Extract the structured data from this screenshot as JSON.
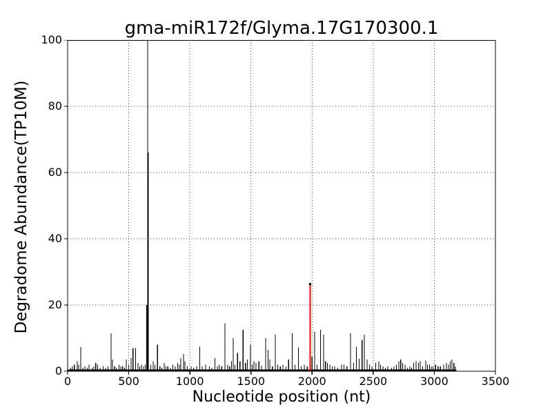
{
  "chart_data": {
    "type": "bar",
    "style": "degradome-vlines-t-plot",
    "title": "gma-miR172f/Glyma.17G170300.1",
    "xlabel": "Nucleotide position (nt)",
    "ylabel": "Degradome Abundance(TP10M)",
    "xlim": [
      0,
      3500
    ],
    "ylim": [
      0,
      100
    ],
    "x_ticks": [
      0,
      500,
      1000,
      1500,
      2000,
      2500,
      3000,
      3500
    ],
    "y_ticks": [
      0,
      20,
      40,
      60,
      80,
      100
    ],
    "grid": {
      "visible": true,
      "style": "dotted"
    },
    "colors": {
      "background": "#ffffff",
      "axis": "#000000",
      "grid": "#3a3a3a",
      "black_spikes": "#000000",
      "red_spike": "#ff0000"
    },
    "transcript_end_nt": 3180,
    "baseline_noise_level": 0.5,
    "black_spikes": [
      [
        25,
        1
      ],
      [
        40,
        1.5
      ],
      [
        55,
        2
      ],
      [
        80,
        3
      ],
      [
        90,
        2
      ],
      [
        107,
        7.3
      ],
      [
        125,
        1
      ],
      [
        140,
        1.5
      ],
      [
        160,
        1
      ],
      [
        175,
        2
      ],
      [
        200,
        1
      ],
      [
        215,
        1.5
      ],
      [
        230,
        2.5
      ],
      [
        245,
        2
      ],
      [
        265,
        1
      ],
      [
        290,
        1.5
      ],
      [
        310,
        1
      ],
      [
        330,
        1.5
      ],
      [
        355,
        11.5
      ],
      [
        368,
        3.5
      ],
      [
        385,
        1.5
      ],
      [
        400,
        1
      ],
      [
        420,
        2
      ],
      [
        435,
        1.5
      ],
      [
        450,
        1.5
      ],
      [
        465,
        1
      ],
      [
        480,
        3.5
      ],
      [
        500,
        2
      ],
      [
        520,
        4
      ],
      [
        535,
        7
      ],
      [
        557,
        7
      ],
      [
        575,
        2.5
      ],
      [
        590,
        1.5
      ],
      [
        605,
        2
      ],
      [
        620,
        1.5
      ],
      [
        635,
        2
      ],
      [
        648,
        20
      ],
      [
        655,
        100
      ],
      [
        661,
        66
      ],
      [
        680,
        2
      ],
      [
        700,
        3
      ],
      [
        715,
        2
      ],
      [
        735,
        8
      ],
      [
        755,
        1.5
      ],
      [
        770,
        1
      ],
      [
        790,
        2.5
      ],
      [
        805,
        1.5
      ],
      [
        820,
        1.5
      ],
      [
        840,
        1
      ],
      [
        860,
        2
      ],
      [
        880,
        1.5
      ],
      [
        900,
        2.5
      ],
      [
        915,
        2
      ],
      [
        925,
        4
      ],
      [
        948,
        5.2
      ],
      [
        960,
        3
      ],
      [
        980,
        1.5
      ],
      [
        1010,
        1.5
      ],
      [
        1030,
        1
      ],
      [
        1055,
        1.5
      ],
      [
        1080,
        7.4
      ],
      [
        1100,
        1.5
      ],
      [
        1130,
        2
      ],
      [
        1160,
        1.5
      ],
      [
        1180,
        1
      ],
      [
        1205,
        4
      ],
      [
        1225,
        1.5
      ],
      [
        1240,
        2
      ],
      [
        1260,
        1.5
      ],
      [
        1287,
        14.5
      ],
      [
        1310,
        2
      ],
      [
        1325,
        1.5
      ],
      [
        1340,
        3
      ],
      [
        1355,
        10
      ],
      [
        1370,
        2
      ],
      [
        1390,
        5.5
      ],
      [
        1410,
        3
      ],
      [
        1435,
        12.5
      ],
      [
        1455,
        2.5
      ],
      [
        1470,
        3.5
      ],
      [
        1495,
        8
      ],
      [
        1510,
        2
      ],
      [
        1525,
        3
      ],
      [
        1540,
        2.5
      ],
      [
        1565,
        3
      ],
      [
        1586,
        1.7
      ],
      [
        1620,
        10
      ],
      [
        1639,
        6.5
      ],
      [
        1655,
        3.5
      ],
      [
        1675,
        1.5
      ],
      [
        1699,
        11
      ],
      [
        1720,
        2
      ],
      [
        1740,
        1.5
      ],
      [
        1761,
        2
      ],
      [
        1786,
        1.5
      ],
      [
        1808,
        3.5
      ],
      [
        1837,
        11.5
      ],
      [
        1860,
        2
      ],
      [
        1889,
        7.2
      ],
      [
        1910,
        1.5
      ],
      [
        1937,
        2
      ],
      [
        1960,
        1.5
      ],
      [
        2000,
        4.4
      ],
      [
        2021,
        12
      ],
      [
        2040,
        2
      ],
      [
        2070,
        12.5
      ],
      [
        2094,
        11
      ],
      [
        2110,
        3
      ],
      [
        2126,
        2.5
      ],
      [
        2145,
        2
      ],
      [
        2165,
        1.5
      ],
      [
        2185,
        1.5
      ],
      [
        2210,
        1
      ],
      [
        2240,
        2
      ],
      [
        2260,
        2
      ],
      [
        2285,
        1.5
      ],
      [
        2315,
        11.5
      ],
      [
        2340,
        2.5
      ],
      [
        2362,
        7.4
      ],
      [
        2386,
        3.8
      ],
      [
        2409,
        9.5
      ],
      [
        2428,
        11
      ],
      [
        2450,
        3.5
      ],
      [
        2470,
        2
      ],
      [
        2490,
        1.5
      ],
      [
        2520,
        2.5
      ],
      [
        2545,
        3
      ],
      [
        2560,
        2
      ],
      [
        2580,
        1.5
      ],
      [
        2600,
        1
      ],
      [
        2620,
        1.5
      ],
      [
        2650,
        1
      ],
      [
        2670,
        1.5
      ],
      [
        2690,
        2
      ],
      [
        2710,
        3
      ],
      [
        2725,
        3.5
      ],
      [
        2740,
        2.5
      ],
      [
        2760,
        2
      ],
      [
        2780,
        1
      ],
      [
        2800,
        1.5
      ],
      [
        2815,
        1
      ],
      [
        2830,
        2.5
      ],
      [
        2850,
        3
      ],
      [
        2870,
        2.5
      ],
      [
        2885,
        3
      ],
      [
        2905,
        1.5
      ],
      [
        2930,
        3.2
      ],
      [
        2945,
        2
      ],
      [
        2960,
        2
      ],
      [
        2975,
        1.5
      ],
      [
        2990,
        1.5
      ],
      [
        3010,
        2
      ],
      [
        3030,
        1.5
      ],
      [
        3050,
        1.5
      ],
      [
        3077,
        2
      ],
      [
        3100,
        2.5
      ],
      [
        3115,
        2
      ],
      [
        3130,
        3
      ],
      [
        3145,
        3.5
      ],
      [
        3160,
        2.5
      ],
      [
        3172,
        1.5
      ]
    ],
    "red_spike": {
      "x": 1984,
      "height": 26,
      "tip_dot": true
    }
  }
}
